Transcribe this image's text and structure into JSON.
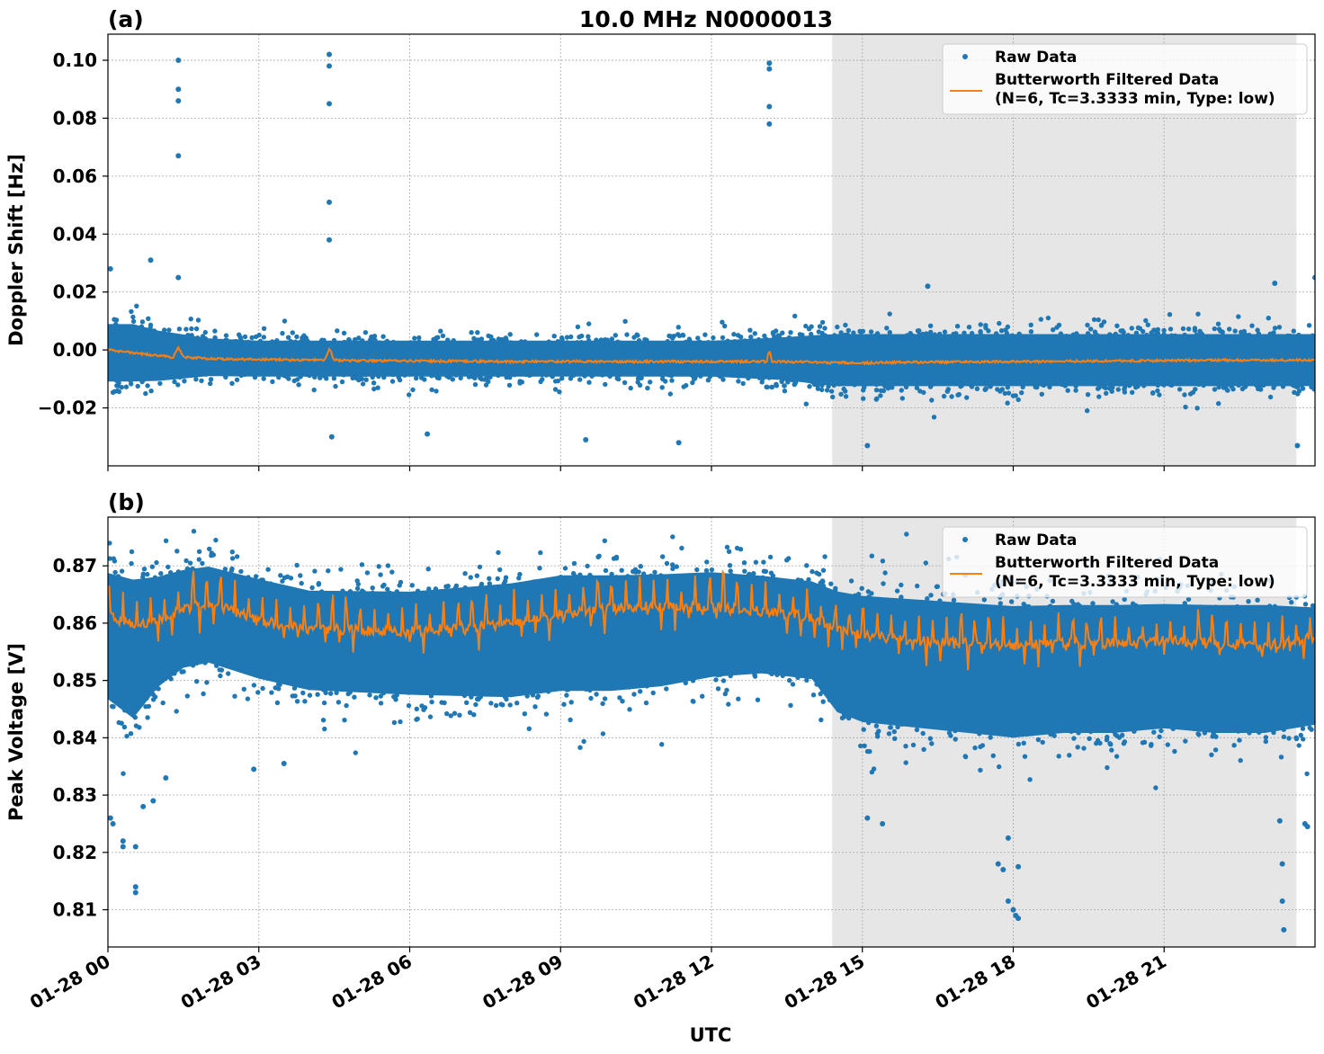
{
  "title": "10.0 MHz N0000013",
  "xlabel": "UTC",
  "x_tick_labels": [
    "01-28 00",
    "01-28 03",
    "01-28 06",
    "01-28 09",
    "01-28 12",
    "01-28 15",
    "01-28 18",
    "01-28 21"
  ],
  "colors": {
    "raw": "#1f77b4",
    "filtered": "#ff7f0e",
    "shade": "#e6e6e6",
    "grid": "#b0b0b0"
  },
  "chart_data": [
    {
      "type": "scatter",
      "panel_label": "(a)",
      "title": "10.0 MHz N0000013",
      "ylabel": "Doppler Shift [Hz]",
      "xlabel": "",
      "x_unit": "hours UTC on 01-28",
      "xlim": [
        0,
        24
      ],
      "ylim": [
        -0.04,
        0.109
      ],
      "x_ticks": [
        0,
        3,
        6,
        9,
        12,
        15,
        18,
        21
      ],
      "y_ticks": [
        -0.02,
        0.0,
        0.02,
        0.04,
        0.06,
        0.08,
        0.1
      ],
      "y_tick_labels": [
        "−0.02",
        "0.00",
        "0.02",
        "0.04",
        "0.06",
        "0.08",
        "0.10"
      ],
      "grid": true,
      "legend_position": "top-right",
      "legend": [
        "Raw Data",
        "Butterworth Filtered Data",
        "(N=6, Tc=3.3333 min, Type: low)"
      ],
      "shaded_interval_hours": [
        14.4,
        23.63
      ],
      "series": [
        {
          "name": "Raw Data",
          "kind": "points",
          "band_x": [
            0,
            0.5,
            1,
            2,
            3,
            6,
            9,
            12,
            13.5,
            14.4,
            18,
            21,
            24
          ],
          "band_low": [
            -0.017,
            -0.017,
            -0.016,
            -0.013,
            -0.013,
            -0.013,
            -0.013,
            -0.013,
            -0.015,
            -0.018,
            -0.018,
            -0.018,
            -0.018
          ],
          "band_high": [
            0.015,
            0.015,
            0.012,
            0.008,
            0.007,
            0.007,
            0.007,
            0.007,
            0.009,
            0.011,
            0.011,
            0.011,
            0.011
          ],
          "outliers": [
            [
              1.4,
              0.1
            ],
            [
              1.4,
              0.09
            ],
            [
              1.4,
              0.086
            ],
            [
              1.4,
              0.067
            ],
            [
              1.4,
              0.025
            ],
            [
              4.4,
              0.102
            ],
            [
              4.4,
              0.098
            ],
            [
              4.4,
              0.085
            ],
            [
              4.4,
              0.051
            ],
            [
              4.4,
              0.038
            ],
            [
              13.15,
              0.099
            ],
            [
              13.15,
              0.097
            ],
            [
              13.15,
              0.084
            ],
            [
              13.15,
              0.078
            ],
            [
              0.05,
              0.028
            ],
            [
              0.85,
              0.031
            ],
            [
              24.0,
              0.025
            ],
            [
              23.2,
              0.023
            ],
            [
              4.45,
              -0.03
            ],
            [
              6.35,
              -0.029
            ],
            [
              9.5,
              -0.031
            ],
            [
              11.35,
              -0.032
            ],
            [
              15.1,
              -0.033
            ],
            [
              23.65,
              -0.033
            ],
            [
              16.3,
              0.022
            ]
          ]
        },
        {
          "name": "Butterworth Filtered Data",
          "kind": "line",
          "x": [
            0,
            0.5,
            1,
            1.3,
            1.4,
            1.5,
            2,
            3,
            4,
            4.3,
            4.4,
            4.5,
            5,
            6,
            8,
            10,
            12,
            13.1,
            13.15,
            13.2,
            14,
            15,
            16,
            18,
            20,
            22,
            24
          ],
          "y": [
            0.0,
            -0.001,
            -0.002,
            -0.0025,
            0.001,
            -0.0025,
            -0.003,
            -0.0033,
            -0.0035,
            -0.0035,
            0.0005,
            -0.0035,
            -0.0037,
            -0.0038,
            -0.004,
            -0.004,
            -0.004,
            -0.004,
            0.0,
            -0.004,
            -0.0042,
            -0.0045,
            -0.0042,
            -0.004,
            -0.0038,
            -0.0035,
            -0.0035
          ]
        }
      ]
    },
    {
      "type": "scatter",
      "panel_label": "(b)",
      "title": "",
      "ylabel": "Peak Voltage [V]",
      "xlabel": "UTC",
      "x_unit": "hours UTC on 01-28",
      "xlim": [
        0,
        24
      ],
      "ylim": [
        0.8035,
        0.8785
      ],
      "x_ticks": [
        0,
        3,
        6,
        9,
        12,
        15,
        18,
        21
      ],
      "y_ticks": [
        0.81,
        0.82,
        0.83,
        0.84,
        0.85,
        0.86,
        0.87
      ],
      "y_tick_labels": [
        "0.81",
        "0.82",
        "0.83",
        "0.84",
        "0.85",
        "0.86",
        "0.87"
      ],
      "grid": true,
      "legend_position": "top-right",
      "legend": [
        "Raw Data",
        "Butterworth Filtered Data",
        "(N=6, Tc=3.3333 min, Type: low)"
      ],
      "shaded_interval_hours": [
        14.4,
        23.63
      ],
      "series": [
        {
          "name": "Raw Data",
          "kind": "points",
          "band_x": [
            0,
            0.5,
            1,
            1.5,
            2,
            3,
            4,
            6,
            8,
            9,
            10,
            11,
            12,
            13,
            14,
            14.5,
            15,
            16,
            17,
            18,
            19,
            20,
            21,
            22,
            23,
            24
          ],
          "band_low": [
            0.84,
            0.836,
            0.843,
            0.847,
            0.848,
            0.845,
            0.843,
            0.842,
            0.841,
            0.842,
            0.842,
            0.843,
            0.845,
            0.846,
            0.845,
            0.838,
            0.836,
            0.835,
            0.834,
            0.833,
            0.834,
            0.834,
            0.835,
            0.834,
            0.834,
            0.836
          ],
          "band_high": [
            0.8755,
            0.875,
            0.874,
            0.8745,
            0.875,
            0.873,
            0.871,
            0.871,
            0.873,
            0.8745,
            0.8745,
            0.8745,
            0.8745,
            0.8735,
            0.8725,
            0.872,
            0.8715,
            0.871,
            0.8705,
            0.87,
            0.87,
            0.87,
            0.87,
            0.87,
            0.87,
            0.869
          ],
          "outliers": [
            [
              0.05,
              0.826
            ],
            [
              0.1,
              0.825
            ],
            [
              0.3,
              0.822
            ],
            [
              0.3,
              0.821
            ],
            [
              0.55,
              0.814
            ],
            [
              0.55,
              0.813
            ],
            [
              0.55,
              0.821
            ],
            [
              0.7,
              0.828
            ],
            [
              0.9,
              0.829
            ],
            [
              1.15,
              0.833
            ],
            [
              2.9,
              0.8345
            ],
            [
              3.5,
              0.8355
            ],
            [
              15.1,
              0.826
            ],
            [
              15.4,
              0.825
            ],
            [
              17.7,
              0.818
            ],
            [
              17.8,
              0.817
            ],
            [
              17.9,
              0.8115
            ],
            [
              18.0,
              0.81
            ],
            [
              18.05,
              0.809
            ],
            [
              18.1,
              0.8085
            ],
            [
              17.9,
              0.8225
            ],
            [
              18.1,
              0.8175
            ],
            [
              23.3,
              0.8255
            ],
            [
              23.35,
              0.818
            ],
            [
              23.35,
              0.8115
            ],
            [
              23.38,
              0.8065
            ],
            [
              23.8,
              0.825
            ],
            [
              23.85,
              0.8245
            ]
          ]
        },
        {
          "name": "Butterworth Filtered Data",
          "kind": "line",
          "x": [
            0,
            0.5,
            1,
            1.5,
            2,
            3,
            4,
            6,
            8,
            9,
            10,
            11,
            12,
            13,
            14,
            14.5,
            15,
            16,
            17,
            18,
            19,
            20,
            21,
            22,
            23,
            24
          ],
          "y": [
            0.8615,
            0.8595,
            0.8605,
            0.8625,
            0.8635,
            0.8605,
            0.859,
            0.8585,
            0.86,
            0.8615,
            0.8625,
            0.863,
            0.863,
            0.862,
            0.861,
            0.859,
            0.858,
            0.857,
            0.8565,
            0.856,
            0.8565,
            0.8565,
            0.857,
            0.8565,
            0.856,
            0.8575
          ],
          "dip_depth": 0.0045,
          "spike_height": 0.0045
        }
      ]
    }
  ]
}
